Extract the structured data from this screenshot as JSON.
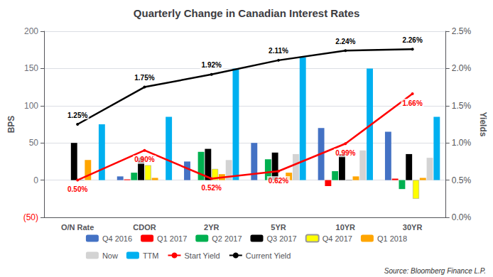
{
  "chart_data": {
    "type": "bar",
    "title": "Quarterly Change in Canadian Interest Rates",
    "categories": [
      "O/N Rate",
      "CDOR",
      "2YR",
      "5YR",
      "10YR",
      "30YR"
    ],
    "series": [
      {
        "name": "Q4 2016",
        "color": "#4472C4",
        "values": [
          0,
          5,
          25,
          50,
          70,
          65
        ]
      },
      {
        "name": "Q1 2017",
        "color": "#FF0000",
        "values": [
          0,
          1,
          0,
          0,
          -8,
          2
        ]
      },
      {
        "name": "Q2 2017",
        "color": "#00B050",
        "values": [
          0,
          10,
          38,
          28,
          12,
          -12
        ]
      },
      {
        "name": "Q3 2017",
        "color": "#000000",
        "values": [
          50,
          30,
          42,
          37,
          35,
          35
        ]
      },
      {
        "name": "Q4 2017",
        "color": "#FFFF00",
        "values": [
          0,
          20,
          15,
          0,
          0,
          -25
        ]
      },
      {
        "name": "Q1 2018",
        "color": "#FFA500",
        "values": [
          27,
          3,
          8,
          10,
          5,
          3
        ]
      },
      {
        "name": "Now",
        "color": "#D3D3D3",
        "values": [
          0,
          0,
          27,
          35,
          40,
          30
        ]
      },
      {
        "name": "TTM",
        "color": "#00B0F0",
        "values": [
          75,
          85,
          150,
          165,
          150,
          85
        ]
      },
      {
        "name": "Start Yield",
        "type": "line",
        "axis": "y2",
        "color": "#FF0000",
        "values": [
          0.5,
          0.9,
          0.52,
          0.62,
          0.99,
          1.66
        ],
        "value_labels": [
          "0.50%",
          "0.90%",
          "0.52%",
          "0.62%",
          "0.99%",
          "1.66%"
        ],
        "data_labels": true
      },
      {
        "name": "Current Yield",
        "type": "line",
        "axis": "y2",
        "color": "#000000",
        "values": [
          1.25,
          1.75,
          1.92,
          2.11,
          2.24,
          2.26
        ],
        "value_labels": [
          "1.25%",
          "1.75%",
          "1.92%",
          "2.11%",
          "2.24%",
          "2.26%"
        ],
        "data_labels": true
      }
    ],
    "ylabel": "BPS",
    "y2label": "Yields",
    "ylim": [
      -50,
      200
    ],
    "yticks": [
      {
        "value": -50,
        "label": "(50)"
      },
      0,
      50,
      100,
      150,
      200
    ],
    "y2lim": [
      0.0,
      2.5
    ],
    "y2ticks": [
      {
        "value": 0.0,
        "label": "0.0%"
      },
      {
        "value": 0.5,
        "label": "0.5%"
      },
      {
        "value": 1.0,
        "label": "1.0%"
      },
      {
        "value": 1.5,
        "label": "1.5%"
      },
      {
        "value": 2.0,
        "label": "2.0%"
      },
      {
        "value": 2.5,
        "label": "2.5%"
      }
    ],
    "grid": true,
    "legend": "bottom",
    "annotations": [
      "Source: Bloomberg Finance L.P."
    ]
  }
}
